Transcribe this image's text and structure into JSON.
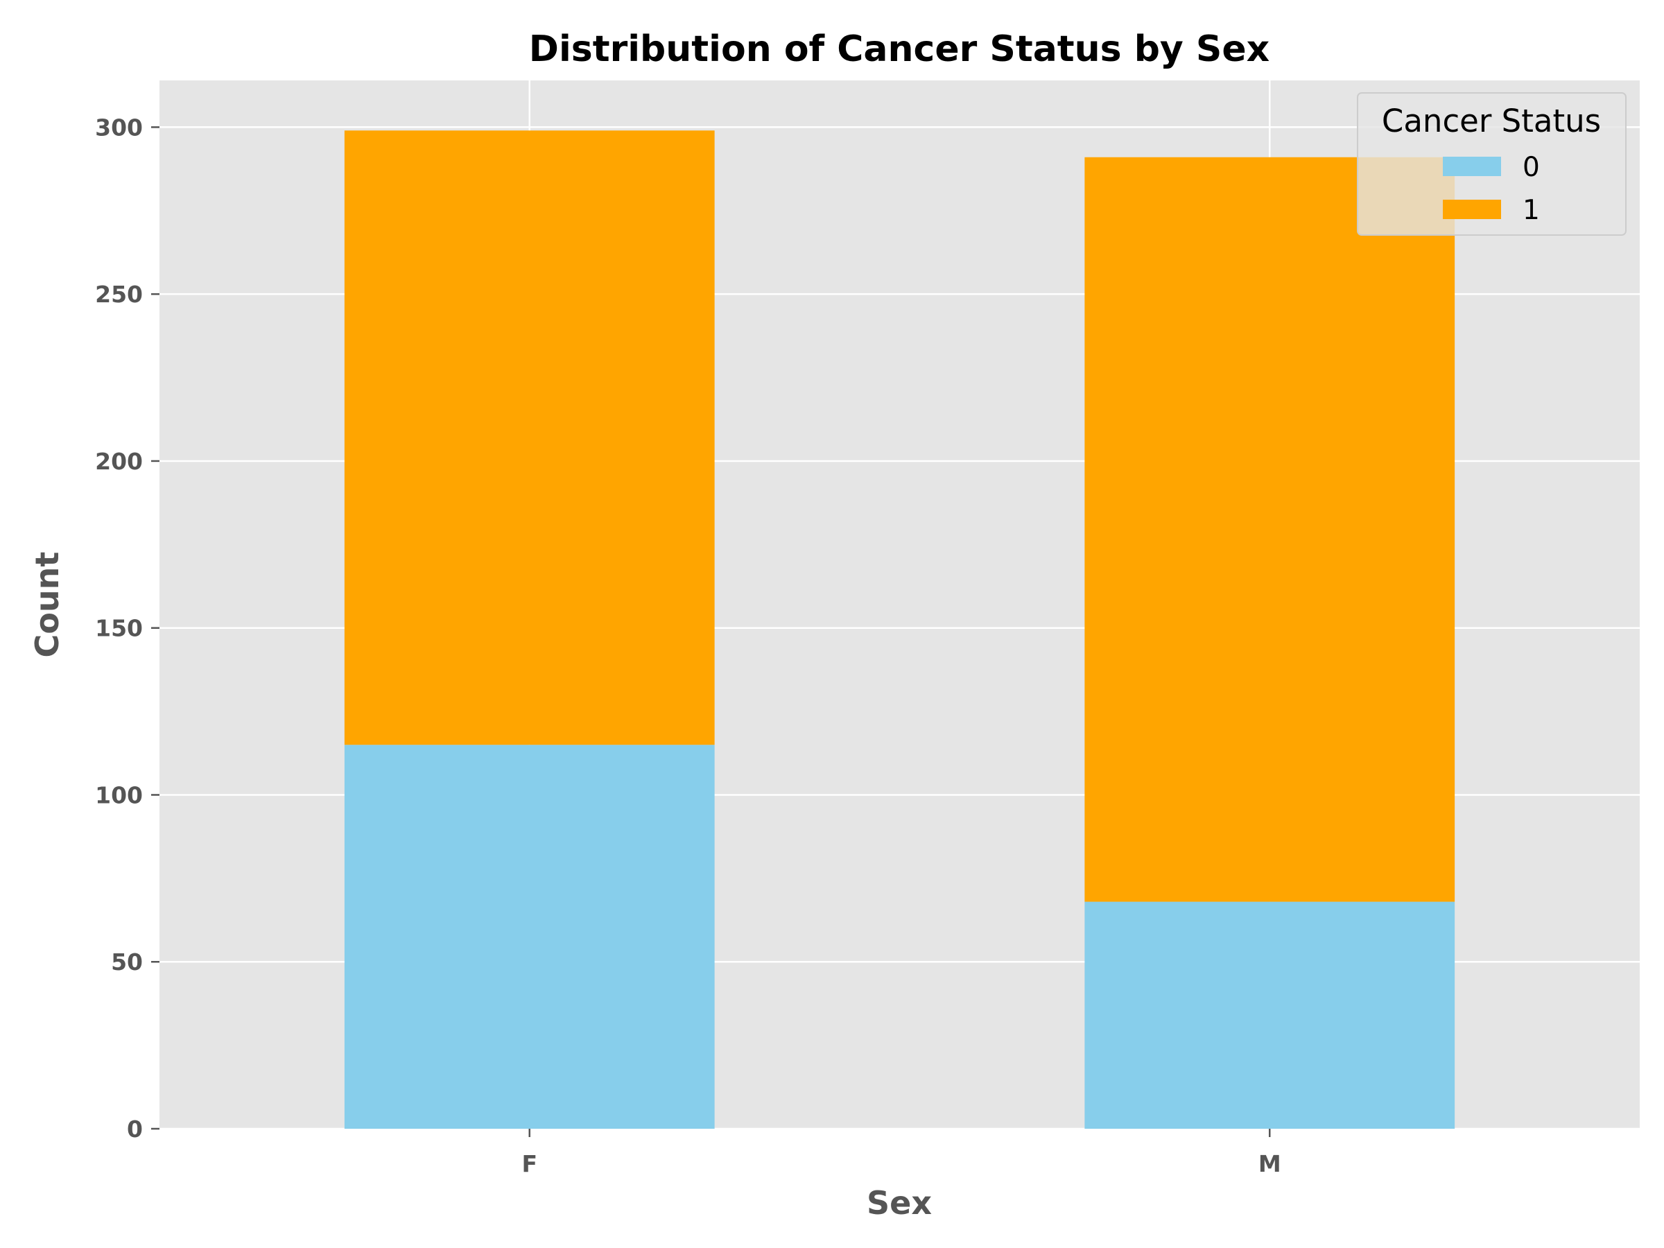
{
  "chart_data": {
    "type": "bar",
    "stacked": true,
    "title": "Distribution of Cancer Status by Sex",
    "xlabel": "Sex",
    "ylabel": "Count",
    "categories": [
      "F",
      "M"
    ],
    "series": [
      {
        "name": "0",
        "values": [
          115,
          68
        ],
        "color": "#87CEEB"
      },
      {
        "name": "1",
        "values": [
          184,
          223
        ],
        "color": "#FFA500"
      }
    ],
    "ylim": [
      0,
      314
    ],
    "yticks": [
      0,
      50,
      100,
      150,
      200,
      250,
      300
    ],
    "grid": true,
    "background": "#E5E5E5",
    "legend": {
      "title": "Cancer Status",
      "placement": "top-right"
    }
  }
}
